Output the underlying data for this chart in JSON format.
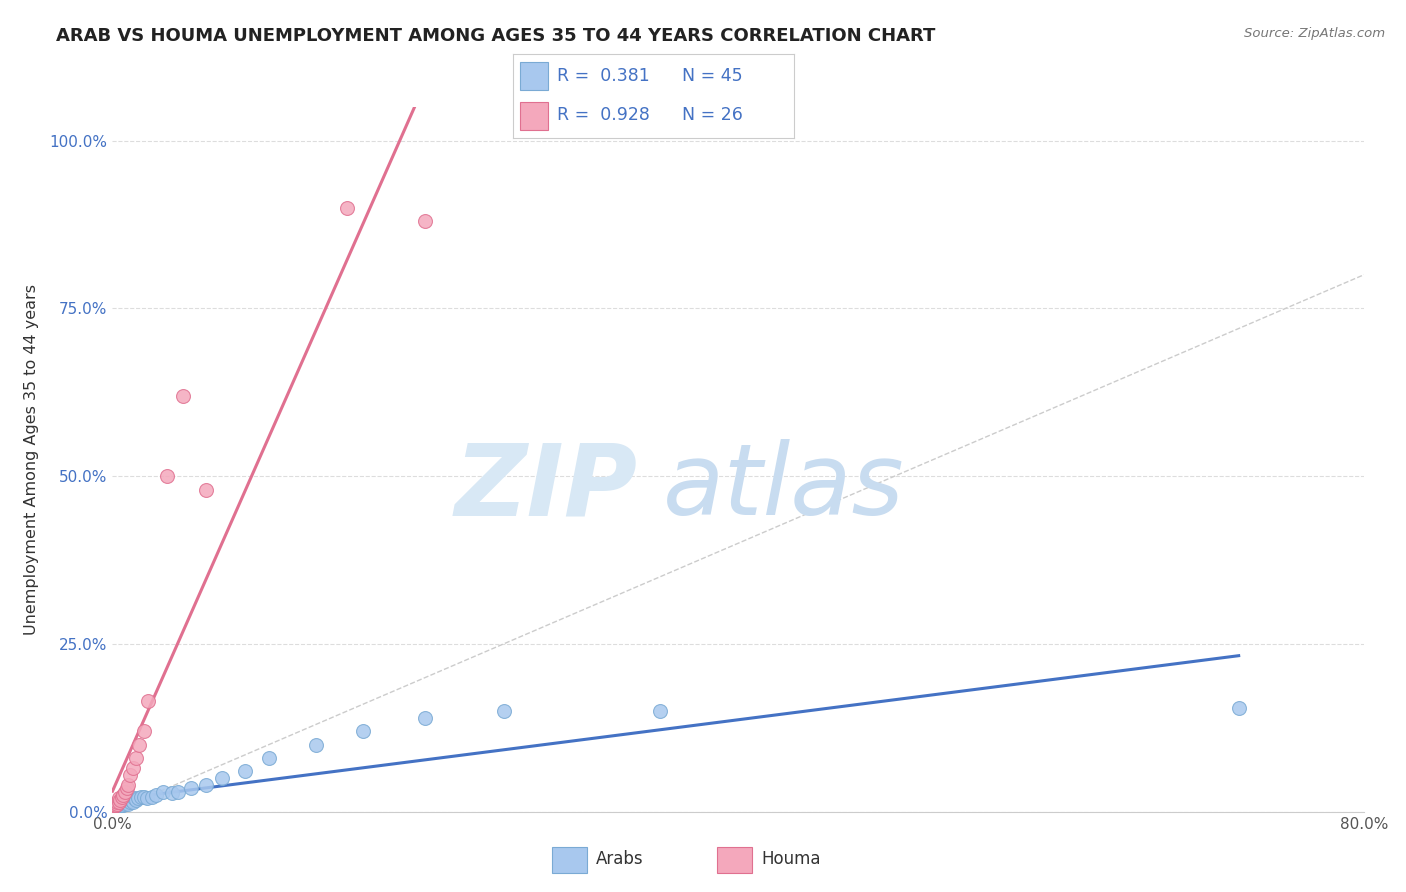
{
  "title": "ARAB VS HOUMA UNEMPLOYMENT AMONG AGES 35 TO 44 YEARS CORRELATION CHART",
  "source": "Source: ZipAtlas.com",
  "ylabel": "Unemployment Among Ages 35 to 44 years",
  "xlim": [
    0.0,
    0.8
  ],
  "ylim": [
    0.0,
    1.05
  ],
  "xticks": [
    0.0,
    0.1,
    0.2,
    0.3,
    0.4,
    0.5,
    0.6,
    0.7,
    0.8
  ],
  "xticklabels": [
    "0.0%",
    "",
    "",
    "",
    "",
    "",
    "",
    "",
    "80.0%"
  ],
  "yticks": [
    0.0,
    0.25,
    0.5,
    0.75,
    1.0
  ],
  "yticklabels": [
    "0.0%",
    "25.0%",
    "50.0%",
    "75.0%",
    "100.0%"
  ],
  "arab_color": "#A8C8EE",
  "arab_edge_color": "#7AAAD4",
  "houma_color": "#F4A8BC",
  "houma_edge_color": "#E07090",
  "arab_line_color": "#4472C4",
  "houma_line_color": "#E07090",
  "diagonal_color": "#CCCCCC",
  "legend_arab_label": "Arabs",
  "legend_houma_label": "Houma",
  "arab_R": "0.381",
  "arab_N": "45",
  "houma_R": "0.928",
  "houma_N": "26",
  "background_color": "#FFFFFF",
  "grid_color": "#DDDDDD",
  "arab_x": [
    0.0,
    0.0,
    0.0,
    0.0,
    0.001,
    0.001,
    0.002,
    0.003,
    0.003,
    0.004,
    0.004,
    0.005,
    0.005,
    0.006,
    0.006,
    0.007,
    0.008,
    0.008,
    0.009,
    0.01,
    0.011,
    0.012,
    0.013,
    0.014,
    0.015,
    0.016,
    0.018,
    0.02,
    0.022,
    0.025,
    0.028,
    0.032,
    0.038,
    0.042,
    0.05,
    0.06,
    0.07,
    0.085,
    0.1,
    0.13,
    0.16,
    0.2,
    0.25,
    0.35,
    0.72
  ],
  "arab_y": [
    0.0,
    0.005,
    0.005,
    0.008,
    0.005,
    0.008,
    0.006,
    0.006,
    0.01,
    0.008,
    0.01,
    0.008,
    0.01,
    0.01,
    0.012,
    0.01,
    0.012,
    0.015,
    0.014,
    0.012,
    0.015,
    0.018,
    0.015,
    0.02,
    0.018,
    0.02,
    0.022,
    0.022,
    0.02,
    0.022,
    0.025,
    0.03,
    0.028,
    0.03,
    0.035,
    0.04,
    0.05,
    0.06,
    0.08,
    0.1,
    0.12,
    0.14,
    0.15,
    0.15,
    0.155
  ],
  "houma_x": [
    0.0,
    0.0,
    0.001,
    0.001,
    0.002,
    0.003,
    0.003,
    0.004,
    0.004,
    0.005,
    0.006,
    0.007,
    0.008,
    0.009,
    0.01,
    0.011,
    0.013,
    0.015,
    0.017,
    0.02,
    0.023,
    0.035,
    0.045,
    0.06,
    0.15,
    0.2
  ],
  "houma_y": [
    0.005,
    0.008,
    0.008,
    0.01,
    0.01,
    0.012,
    0.015,
    0.015,
    0.02,
    0.018,
    0.022,
    0.025,
    0.03,
    0.035,
    0.04,
    0.055,
    0.065,
    0.08,
    0.1,
    0.12,
    0.165,
    0.5,
    0.62,
    0.48,
    0.9,
    0.88
  ]
}
